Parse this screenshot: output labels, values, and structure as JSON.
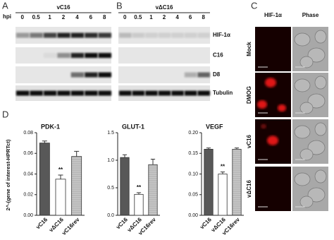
{
  "panel_labels": [
    "A",
    "B",
    "C",
    "D"
  ],
  "blots": [
    {
      "strain": "vC16",
      "hpi_label": "hpi",
      "timepoints": [
        "0",
        "0.5",
        "1",
        "2",
        "4",
        "6",
        "8"
      ]
    },
    {
      "strain": "vΔC16",
      "timepoints": [
        "0",
        "0.5",
        "1",
        "2",
        "4",
        "6",
        "8"
      ]
    }
  ],
  "blot_rows": [
    "HIF-1α",
    "C16",
    "D8",
    "Tubulin"
  ],
  "microscopy": {
    "columns": [
      "HIF-1α",
      "Phase"
    ],
    "rows": [
      "Mock",
      "DMOG",
      "vC16",
      "vΔC16"
    ]
  },
  "y_axis_label": "2^-(gene of interest-HPRTct)",
  "chart_data": [
    {
      "type": "bar",
      "title": "PDK-1",
      "categories": [
        "vC16",
        "vΔC16",
        "vC16rev"
      ],
      "values": [
        0.07,
        0.035,
        0.057
      ],
      "errors": [
        0.002,
        0.004,
        0.005
      ],
      "significance": [
        null,
        "**",
        null
      ],
      "colors": [
        "#585858",
        "#ffffff",
        "#bdbdbd"
      ],
      "ylim": [
        0,
        0.08
      ],
      "yticks": [
        {
          "value": 0,
          "label": "0.00"
        },
        {
          "value": 0.02,
          "label": "0.02"
        },
        {
          "value": 0.04,
          "label": "0.04"
        },
        {
          "value": 0.06,
          "label": "0.06"
        },
        {
          "value": 0.08,
          "label": "0.08"
        }
      ]
    },
    {
      "type": "bar",
      "title": "GLUT-1",
      "categories": [
        "vC16",
        "vΔC16",
        "vC16rev"
      ],
      "values": [
        1.05,
        0.38,
        0.92
      ],
      "errors": [
        0.05,
        0.03,
        0.1
      ],
      "significance": [
        null,
        "**",
        null
      ],
      "colors": [
        "#585858",
        "#ffffff",
        "#bdbdbd"
      ],
      "ylim": [
        0,
        1.5
      ],
      "yticks": [
        {
          "value": 0,
          "label": "0.0"
        },
        0.5,
        {
          "value": 1,
          "label": "1.0"
        },
        1.5
      ]
    },
    {
      "type": "bar",
      "title": "VEGF",
      "categories": [
        "vC16",
        "vΔC16",
        "vC16rev"
      ],
      "values": [
        0.16,
        0.1,
        0.16
      ],
      "errors": [
        0.003,
        0.005,
        0.003
      ],
      "significance": [
        null,
        "**",
        null
      ],
      "colors": [
        "#585858",
        "#ffffff",
        "#bdbdbd"
      ],
      "ylim": [
        0,
        0.2
      ],
      "yticks": [
        {
          "value": 0,
          "label": "0.00"
        },
        {
          "value": 0.05,
          "label": "0.05"
        },
        {
          "value": 0.1,
          "label": "0.10"
        },
        {
          "value": 0.15,
          "label": "0.15"
        },
        {
          "value": 0.2,
          "label": "0.20"
        }
      ]
    }
  ]
}
